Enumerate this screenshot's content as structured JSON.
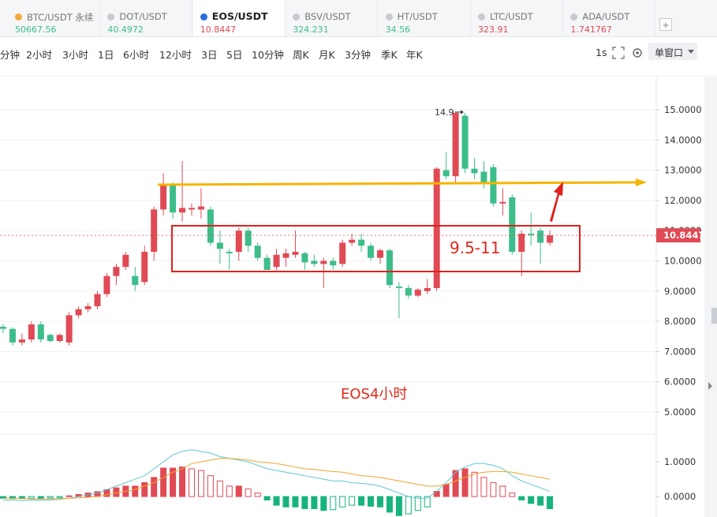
{
  "tabs": [
    {
      "symbol": "BTC/USDT 永续",
      "price": "50667.56",
      "color": "#3dbd8a",
      "icon": "#f2a93b"
    },
    {
      "symbol": "DOT/USDT",
      "price": "40.4972",
      "color": "#3dbd8a",
      "icon": "#c9c9d0"
    },
    {
      "symbol": "EOS/USDT",
      "price": "10.8447",
      "color": "#e04a54",
      "icon": "#2a6fdb"
    },
    {
      "symbol": "BSV/USDT",
      "price": "324.231",
      "color": "#3dbd8a",
      "icon": "#c9c9d0"
    },
    {
      "symbol": "HT/USDT",
      "price": "34.56",
      "color": "#3dbd8a",
      "icon": "#c9c9d0"
    },
    {
      "symbol": "LTC/USDT",
      "price": "323.91",
      "color": "#e04a54",
      "icon": "#c9c9d0"
    },
    {
      "symbol": "ADA/USDT",
      "price": "1.741767",
      "color": "#e04a54",
      "icon": "#c9c9d0"
    }
  ],
  "toolbar": {
    "intervals": [
      "分钟",
      "2小时",
      "3小时",
      "1日",
      "6小时",
      "12小时",
      "3日",
      "5日",
      "10分钟",
      "周K",
      "月K",
      "3分钟",
      "季K",
      "年K"
    ],
    "speed": "1s",
    "window": "单窗口"
  },
  "chart_data": [
    {
      "type": "candlestick",
      "up_color": "#e04a54",
      "down_color": "#3dbd8a",
      "open": [
        7.82,
        7.75,
        7.3,
        7.4,
        7.9,
        7.55,
        7.35,
        7.3,
        8.2,
        8.4,
        8.5,
        8.9,
        9.5,
        9.8,
        9.5,
        9.3,
        10.3,
        11.7,
        12.5,
        11.6,
        11.7,
        11.7,
        11.7,
        10.6,
        10.3,
        10.3,
        11.0,
        10.5,
        10.1,
        9.8,
        10.1,
        10.2,
        10.25,
        10.0,
        9.9,
        10.0,
        9.9,
        10.6,
        10.7,
        10.5,
        10.1,
        10.35,
        9.15,
        9.1,
        8.85,
        9.0,
        9.1,
        13.0,
        12.8,
        14.8,
        13.05,
        12.95,
        13.1,
        11.9,
        12.1,
        10.3,
        10.9,
        11.0,
        10.6
      ],
      "high": [
        7.9,
        7.8,
        7.6,
        8.0,
        8.0,
        7.6,
        7.6,
        8.3,
        8.5,
        8.6,
        9.0,
        9.6,
        9.9,
        10.3,
        9.8,
        10.5,
        11.8,
        12.9,
        12.6,
        13.3,
        11.9,
        12.4,
        11.8,
        11.0,
        10.4,
        11.1,
        11.1,
        10.6,
        10.2,
        10.4,
        10.4,
        11.0,
        10.3,
        10.2,
        10.1,
        10.1,
        10.7,
        10.9,
        10.9,
        10.6,
        10.4,
        10.4,
        9.3,
        9.2,
        9.1,
        9.4,
        13.1,
        13.6,
        14.95,
        14.9,
        13.4,
        13.3,
        13.2,
        12.4,
        12.2,
        11.0,
        11.6,
        11.1,
        11.0
      ],
      "low": [
        7.6,
        7.2,
        7.2,
        7.3,
        7.3,
        7.3,
        7.3,
        7.2,
        8.1,
        8.3,
        8.4,
        8.8,
        9.2,
        9.7,
        9.0,
        9.2,
        10.0,
        11.5,
        11.4,
        11.3,
        11.5,
        11.4,
        10.5,
        9.9,
        9.7,
        10.0,
        10.3,
        10.0,
        9.7,
        9.7,
        9.8,
        10.1,
        9.7,
        9.8,
        9.1,
        9.7,
        9.8,
        10.5,
        10.3,
        10.0,
        9.9,
        9.1,
        8.1,
        8.75,
        8.8,
        8.9,
        9.0,
        12.7,
        12.6,
        12.9,
        12.7,
        12.4,
        11.8,
        11.5,
        10.2,
        9.5,
        10.5,
        9.9,
        10.5
      ],
      "close": [
        7.75,
        7.3,
        7.4,
        7.9,
        7.4,
        7.35,
        7.55,
        8.2,
        8.4,
        8.5,
        8.9,
        9.5,
        9.8,
        10.2,
        9.2,
        10.3,
        11.7,
        12.5,
        11.6,
        11.75,
        11.75,
        11.8,
        10.6,
        10.4,
        10.25,
        11.0,
        10.5,
        10.1,
        9.7,
        10.2,
        10.25,
        10.3,
        9.95,
        9.9,
        10.0,
        9.85,
        10.6,
        10.7,
        10.5,
        10.1,
        10.35,
        9.2,
        9.1,
        8.85,
        9.05,
        9.1,
        13.05,
        12.8,
        14.9,
        13.05,
        12.9,
        12.6,
        11.9,
        11.95,
        10.3,
        10.9,
        10.85,
        10.6,
        10.8447
      ],
      "ylim": [
        4.32,
        15.68
      ],
      "yticks": [
        {
          "value": 15,
          "label": "15.0000"
        },
        {
          "value": 14,
          "label": "14.0000"
        },
        {
          "value": 13,
          "label": "13.0000"
        },
        {
          "value": 12,
          "label": "12.0000"
        },
        {
          "value": 11,
          "label": "11.0000"
        },
        {
          "value": 10,
          "label": "10.0000"
        },
        {
          "value": 9,
          "label": "9.0000"
        },
        {
          "value": 8,
          "label": "8.0000"
        },
        {
          "value": 7,
          "label": "7.0000"
        },
        {
          "value": 6,
          "label": "6.0000"
        },
        {
          "value": 5,
          "label": "5.0000"
        }
      ],
      "grid": true,
      "last_price": 10.8447,
      "annotations": {
        "high": "14.9",
        "range": "9.5-11",
        "caption": "EOS4小时"
      }
    },
    {
      "type": "macd",
      "up_color": "#e04a54",
      "down_color": "#16b37d",
      "dif_color": "#5cc8d2",
      "dea_color": "#f0a52e",
      "histogram": [
        -0.05,
        -0.06,
        -0.06,
        -0.05,
        -0.05,
        -0.04,
        -0.03,
        0.02,
        0.06,
        0.1,
        0.14,
        0.2,
        0.25,
        0.3,
        0.3,
        0.4,
        0.55,
        0.82,
        0.82,
        0.85,
        0.8,
        0.75,
        0.6,
        0.45,
        0.3,
        0.3,
        0.22,
        0.1,
        -0.1,
        -0.25,
        -0.3,
        -0.3,
        -0.35,
        -0.35,
        -0.4,
        -0.38,
        -0.3,
        -0.25,
        -0.25,
        -0.28,
        -0.3,
        -0.45,
        -0.55,
        -0.5,
        -0.4,
        -0.3,
        0.15,
        0.35,
        0.75,
        0.8,
        0.7,
        0.55,
        0.4,
        0.3,
        0.1,
        -0.1,
        -0.2,
        -0.25,
        -0.35
      ],
      "dif": [
        -0.1,
        -0.1,
        -0.12,
        -0.1,
        -0.1,
        -0.1,
        -0.08,
        -0.05,
        0,
        0.05,
        0.1,
        0.2,
        0.3,
        0.4,
        0.5,
        0.6,
        0.8,
        1.0,
        1.2,
        1.3,
        1.35,
        1.3,
        1.25,
        1.15,
        1.1,
        1.05,
        1.0,
        0.9,
        0.8,
        0.75,
        0.7,
        0.65,
        0.6,
        0.55,
        0.5,
        0.45,
        0.45,
        0.4,
        0.38,
        0.35,
        0.3,
        0.2,
        0.1,
        0.0,
        -0.05,
        -0.05,
        0.15,
        0.4,
        0.7,
        0.85,
        0.95,
        0.95,
        0.9,
        0.8,
        0.6,
        0.45,
        0.35,
        0.25,
        0.15
      ],
      "dea": [
        -0.05,
        -0.05,
        -0.06,
        -0.07,
        -0.07,
        -0.07,
        -0.06,
        -0.05,
        -0.04,
        -0.02,
        0,
        0.05,
        0.1,
        0.15,
        0.2,
        0.3,
        0.4,
        0.55,
        0.7,
        0.8,
        0.95,
        1.0,
        1.05,
        1.1,
        1.1,
        1.08,
        1.05,
        1.0,
        0.98,
        0.95,
        0.9,
        0.85,
        0.8,
        0.78,
        0.75,
        0.72,
        0.7,
        0.65,
        0.6,
        0.58,
        0.55,
        0.5,
        0.45,
        0.4,
        0.35,
        0.3,
        0.3,
        0.35,
        0.45,
        0.55,
        0.65,
        0.7,
        0.72,
        0.72,
        0.7,
        0.65,
        0.6,
        0.55,
        0.5
      ],
      "ylim": [
        -0.59,
        1.73
      ],
      "yticks": [
        {
          "value": 1,
          "label": "1.0000"
        },
        {
          "value": 0,
          "label": "0.0000"
        }
      ]
    }
  ]
}
